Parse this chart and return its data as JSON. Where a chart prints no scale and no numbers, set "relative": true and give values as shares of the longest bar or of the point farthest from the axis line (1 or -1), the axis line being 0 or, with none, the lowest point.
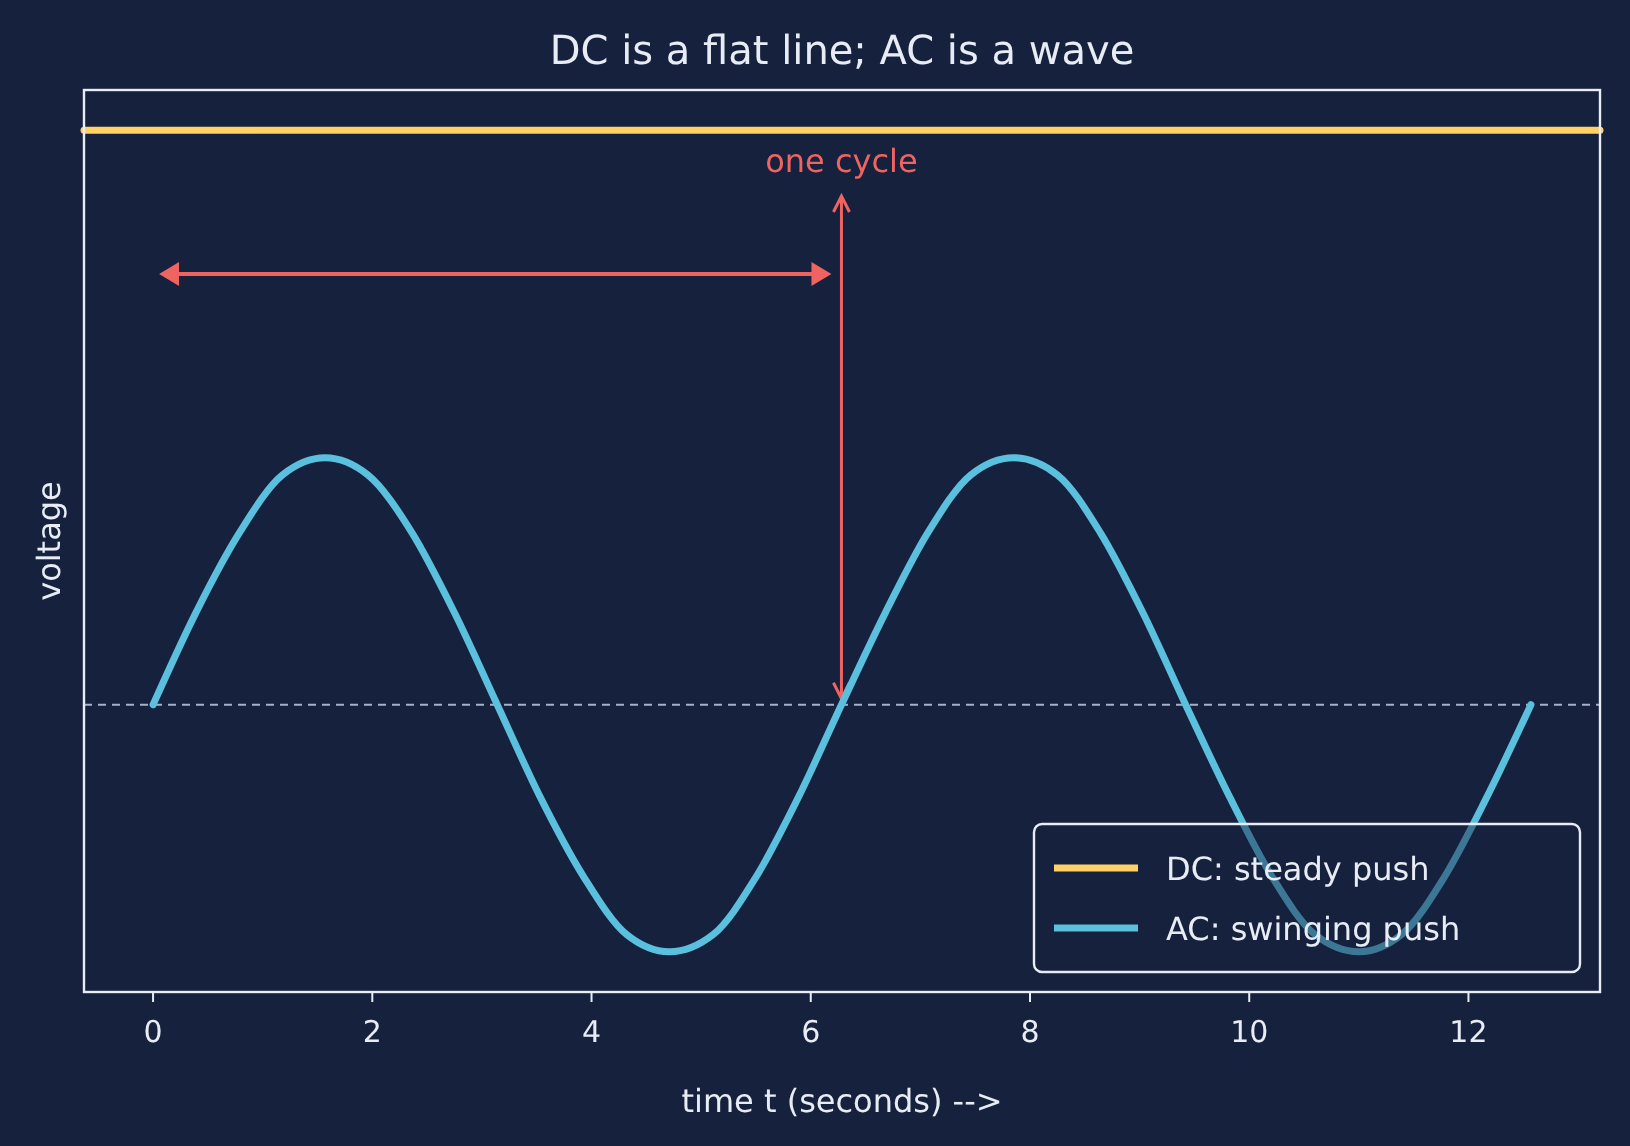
{
  "chart_data": {
    "type": "line",
    "title": "DC is a flat line; AC is a wave",
    "xlabel": "time  t  (seconds) -->",
    "ylabel": "voltage",
    "relative": true,
    "xlim": [
      -0.63,
      13.2
    ],
    "xticks": [
      0,
      2,
      4,
      6,
      8,
      10,
      12
    ],
    "series": [
      {
        "name": "DC: steady push",
        "color": "#ffd166",
        "x": [
          -0.63,
          13.2
        ],
        "values": [
          1,
          1
        ]
      },
      {
        "name": "AC: swinging push",
        "color": "#5bc0de",
        "x": [
          0,
          0.39,
          0.79,
          1.18,
          1.57,
          1.96,
          2.36,
          2.75,
          3.14,
          3.53,
          3.93,
          4.32,
          4.71,
          5.11,
          5.5,
          5.89,
          6.28,
          6.68,
          7.07,
          7.46,
          7.85,
          8.25,
          8.64,
          9.03,
          9.42,
          9.82,
          10.21,
          10.6,
          11,
          11.39,
          11.78,
          12.17,
          12.57
        ],
        "values": [
          0,
          0.16,
          0.3,
          0.4,
          0.43,
          0.4,
          0.3,
          0.16,
          0,
          -0.16,
          -0.3,
          -0.4,
          -0.43,
          -0.4,
          -0.3,
          -0.16,
          0,
          0.16,
          0.3,
          0.4,
          0.43,
          0.4,
          0.3,
          0.16,
          0,
          -0.16,
          -0.3,
          -0.4,
          -0.43,
          -0.4,
          -0.3,
          -0.16,
          0
        ]
      }
    ],
    "ref_lines": [
      {
        "axis": "y",
        "value": 0,
        "color": "#a8b0c8",
        "line_style": "dashed"
      },
      {
        "axis": "x",
        "value": 6.28,
        "label": "one cycle",
        "color": "#ef6461"
      }
    ],
    "legend": "bottom right",
    "grid": false
  }
}
